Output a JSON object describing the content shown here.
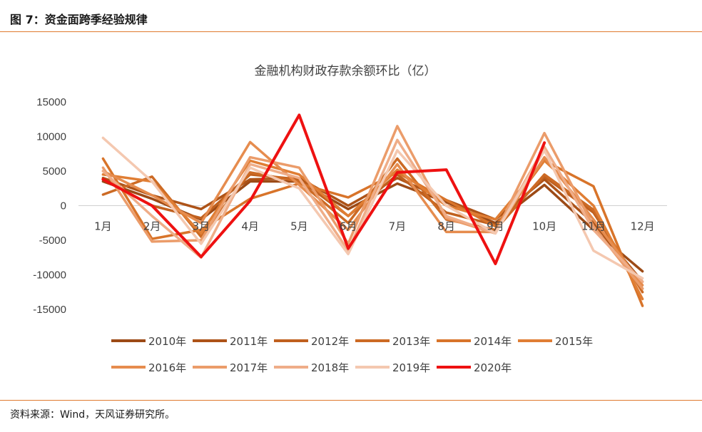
{
  "figure": {
    "caption": "图 7：资金面跨季经验规律",
    "source": "资料来源：Wind，天风证券研究所。"
  },
  "chart_data": {
    "type": "line",
    "title": "金融机构财政存款余额环比（亿）",
    "xlabel": "",
    "ylabel": "",
    "ylim": [
      -15000,
      15000
    ],
    "yticks": [
      15000,
      10000,
      5000,
      0,
      -5000,
      -10000,
      -15000
    ],
    "grid": false,
    "legend": "bottom",
    "categories": [
      "1月",
      "2月",
      "3月",
      "4月",
      "5月",
      "6月",
      "7月",
      "8月",
      "9月",
      "10月",
      "11月",
      "12月"
    ],
    "series": [
      {
        "name": "2010年",
        "color": "#9c4a16",
        "width": 3.5,
        "values": [
          3500,
          1000,
          -2000,
          3500,
          3500,
          -500,
          3200,
          500,
          -2500,
          3000,
          -3500,
          -9500
        ]
      },
      {
        "name": "2011年",
        "color": "#ad5318",
        "width": 3.5,
        "values": [
          4000,
          1500,
          -500,
          3800,
          4000,
          0,
          4000,
          800,
          -2000,
          3800,
          -2500,
          -11000
        ]
      },
      {
        "name": "2012年",
        "color": "#c0601e",
        "width": 3.5,
        "values": [
          3800,
          0,
          -1800,
          4500,
          3800,
          -1500,
          4500,
          -1000,
          -2800,
          4200,
          -1000,
          -12000
        ]
      },
      {
        "name": "2013年",
        "color": "#cc6a24",
        "width": 3.5,
        "values": [
          1600,
          4200,
          -4500,
          4800,
          3500,
          -2500,
          6800,
          -2000,
          -3500,
          4500,
          -600,
          -12500
        ]
      },
      {
        "name": "2014年",
        "color": "#d8742a",
        "width": 3.5,
        "values": [
          6800,
          -4800,
          -3500,
          1000,
          3200,
          1200,
          4800,
          800,
          -3000,
          6500,
          2800,
          -14500
        ]
      },
      {
        "name": "2015年",
        "color": "#e07e34",
        "width": 3.5,
        "values": [
          4500,
          3500,
          -4000,
          6500,
          4500,
          -1500,
          5200,
          0,
          -2000,
          6500,
          0,
          -13500
        ]
      },
      {
        "name": "2016年",
        "color": "#e68c4e",
        "width": 3.5,
        "values": [
          5000,
          1500,
          -2500,
          9200,
          3000,
          -3500,
          6000,
          -3800,
          -3800,
          7000,
          -2000,
          -11500
        ]
      },
      {
        "name": "2017年",
        "color": "#eb9c6a",
        "width": 3.5,
        "values": [
          5500,
          -5200,
          -5000,
          7000,
          5500,
          -5500,
          11500,
          -1800,
          -4000,
          10500,
          -3000,
          -12000
        ]
      },
      {
        "name": "2018年",
        "color": "#efad88",
        "width": 3.5,
        "values": [
          5000,
          -1500,
          -7500,
          6000,
          4000,
          -6500,
          9500,
          -1500,
          -4000,
          8500,
          -3500,
          -11000
        ]
      },
      {
        "name": "2019年",
        "color": "#f4c8b0",
        "width": 3.5,
        "values": [
          9800,
          3500,
          -5500,
          5500,
          2500,
          -7000,
          8000,
          0,
          -4000,
          8000,
          -6500,
          -10500
        ]
      },
      {
        "name": "2020年",
        "color": "#ee1111",
        "width": 4,
        "values": [
          3800,
          0,
          -7400,
          700,
          13100,
          -6200,
          4800,
          5200,
          -8400,
          9100,
          null,
          null
        ]
      }
    ]
  }
}
